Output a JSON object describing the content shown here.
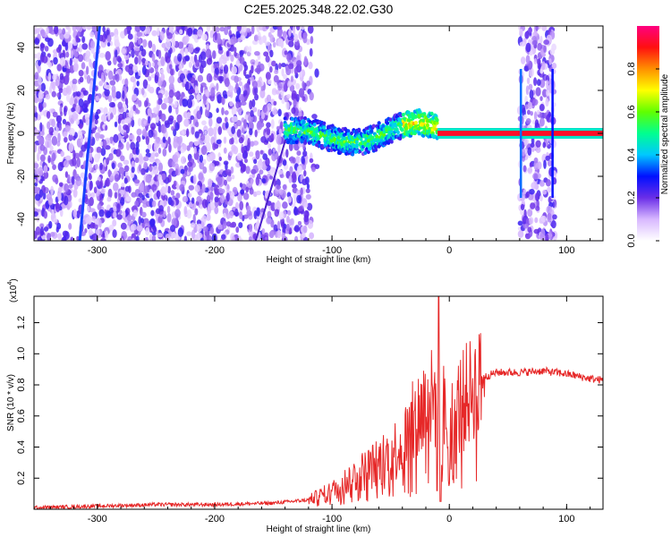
{
  "title": "C2E5.2025.348.22.02.G30",
  "chart_data": [
    {
      "type": "heatmap",
      "xlabel": "Height of straight line (km)",
      "ylabel": "Frequency (Hz)",
      "xlim": [
        -354,
        131
      ],
      "ylim": [
        -50,
        50
      ],
      "xticks": [
        -300,
        -200,
        -100,
        0,
        100
      ],
      "xtick_labels": [
        "-300",
        "-200",
        "-100",
        "0",
        "100"
      ],
      "yticks": [
        -40,
        -20,
        0,
        20,
        40
      ],
      "ytick_labels": [
        "-40",
        "-20",
        "0",
        "20",
        "40"
      ],
      "colorbar": {
        "label": "Normalized spectral amplitude",
        "range": [
          0,
          1
        ],
        "ticks": [
          0.0,
          0.2,
          0.4,
          0.6,
          0.8
        ],
        "tick_labels": [
          "0.0",
          "0.2",
          "0.4",
          "0.6",
          "0.8"
        ]
      },
      "regions": [
        {
          "name": "noise",
          "x": [
            -354,
            -112
          ],
          "freq": [
            -50,
            50
          ],
          "amplitude": 0.15
        },
        {
          "name": "signal-wobble",
          "x": [
            -140,
            -10
          ],
          "freq_center": 0,
          "amplitude": 0.5
        },
        {
          "name": "signal-steady",
          "x": [
            -10,
            131
          ],
          "freq_center": 0,
          "amplitude": 0.95
        },
        {
          "name": "noise-band",
          "x": [
            60,
            90
          ],
          "freq": [
            -50,
            50
          ],
          "amplitude": 0.15
        }
      ],
      "diagonal_tracks": [
        {
          "x_start": -315,
          "x_end": -298,
          "freq_start": -50,
          "freq_end": 50
        },
        {
          "x_start": -165,
          "x_end": -138,
          "freq_start": -50,
          "freq_end": 0
        }
      ]
    },
    {
      "type": "line",
      "xlabel": "Height of straight line (km)",
      "ylabel": "SNR (10 * v/v)",
      "scale_label": "(x10",
      "scale_exponent": "4",
      "scale_suffix": ")",
      "xlim": [
        -354,
        131
      ],
      "ylim": [
        0,
        1.37
      ],
      "xticks": [
        -300,
        -200,
        -100,
        0,
        100
      ],
      "xtick_labels": [
        "-300",
        "-200",
        "-100",
        "0",
        "100"
      ],
      "yticks": [
        0.2,
        0.4,
        0.6,
        0.8,
        1.0,
        1.2
      ],
      "ytick_labels": [
        "0.2",
        "0.4",
        "0.6",
        "0.8",
        "1.0",
        "1.2"
      ],
      "series": [
        {
          "name": "SNR",
          "color": "#e62828",
          "x": [
            -354,
            -300,
            -250,
            -200,
            -150,
            -120,
            -100,
            -80,
            -60,
            -40,
            -30,
            -20,
            -10,
            0,
            10,
            20,
            30,
            40,
            60,
            80,
            100,
            120,
            131
          ],
          "y": [
            0.01,
            0.02,
            0.03,
            0.03,
            0.04,
            0.06,
            0.12,
            0.22,
            0.3,
            0.42,
            0.55,
            0.68,
            0.72,
            0.52,
            0.68,
            0.78,
            0.85,
            0.88,
            0.88,
            0.89,
            0.87,
            0.84,
            0.83
          ]
        }
      ],
      "spike": {
        "x": -9,
        "y": 1.37
      }
    }
  ],
  "colors": {
    "line": "#e62828",
    "axis": "#000000"
  }
}
